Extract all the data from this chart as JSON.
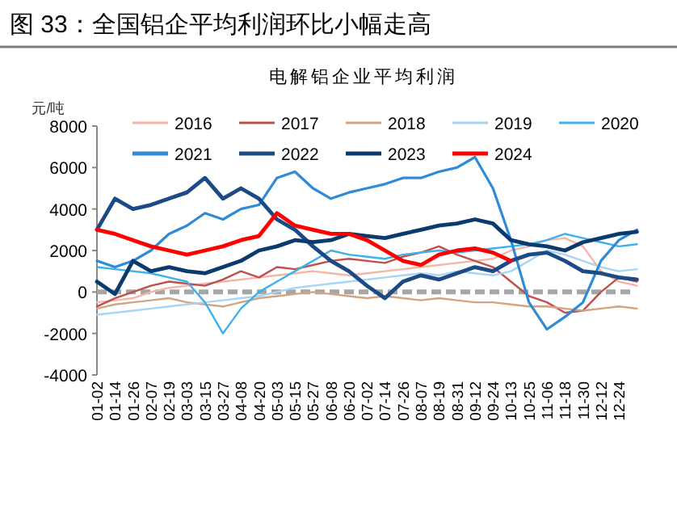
{
  "chart_data": {
    "type": "line",
    "title": "图 33：全国铝企平均利润环比小幅走高",
    "subtitle": "电解铝企业平均利润",
    "ylabel": "元/吨",
    "categories": [
      "01-02",
      "01-14",
      "01-26",
      "02-07",
      "02-19",
      "03-03",
      "03-15",
      "03-27",
      "04-08",
      "04-20",
      "05-03",
      "05-15",
      "05-27",
      "06-08",
      "06-20",
      "07-02",
      "07-14",
      "07-26",
      "08-07",
      "08-19",
      "08-31",
      "09-12",
      "09-24",
      "10-13",
      "10-25",
      "11-06",
      "11-18",
      "11-30",
      "12-12",
      "12-24",
      null
    ],
    "ylim": [
      -4000,
      8000
    ],
    "yticks": [
      -4000,
      -2000,
      0,
      2000,
      4000,
      6000,
      8000
    ],
    "grid": false,
    "legend": "top",
    "line_style": "solid",
    "ref_lines": [
      {
        "axis": "y",
        "value": 0,
        "color": "#a6a6a6",
        "line_style": "dashed"
      }
    ],
    "series": [
      {
        "name": "2016",
        "color": "#f4b6a6",
        "values": [
          -500,
          -400,
          -300,
          0,
          200,
          300,
          400,
          500,
          600,
          700,
          800,
          900,
          1000,
          900,
          800,
          900,
          1000,
          1100,
          1200,
          1300,
          1400,
          1500,
          1600,
          2000,
          2200,
          2500,
          2600,
          2200,
          1000,
          500,
          300
        ]
      },
      {
        "name": "2017",
        "color": "#c0504d",
        "values": [
          -700,
          -300,
          0,
          300,
          500,
          400,
          300,
          600,
          1000,
          700,
          1200,
          1100,
          1300,
          1500,
          1600,
          1500,
          1400,
          1700,
          1900,
          2200,
          1800,
          1500,
          1200,
          500,
          -200,
          -500,
          -1000,
          -900,
          0,
          700,
          500
        ]
      },
      {
        "name": "2018",
        "color": "#d4a37f",
        "values": [
          -800,
          -600,
          -500,
          -400,
          -300,
          -500,
          -600,
          -700,
          -500,
          -300,
          -200,
          -100,
          0,
          -100,
          -200,
          -300,
          -200,
          -300,
          -400,
          -300,
          -400,
          -500,
          -500,
          -600,
          -700,
          -700,
          -800,
          -900,
          -800,
          -700,
          -800
        ]
      },
      {
        "name": "2019",
        "color": "#a9d4f2",
        "values": [
          -1100,
          -1000,
          -900,
          -800,
          -700,
          -600,
          -500,
          -400,
          -300,
          -200,
          0,
          200,
          300,
          400,
          500,
          600,
          700,
          800,
          900,
          800,
          1000,
          900,
          800,
          1000,
          1500,
          2000,
          1800,
          1500,
          1200,
          1000,
          1100
        ]
      },
      {
        "name": "2020",
        "color": "#3cb2ec",
        "values": [
          1200,
          1100,
          1000,
          900,
          700,
          500,
          -500,
          -2000,
          -800,
          0,
          500,
          1000,
          1500,
          2000,
          1800,
          1700,
          1600,
          1800,
          1900,
          2000,
          1900,
          2000,
          2100,
          2200,
          2300,
          2500,
          2800,
          2600,
          2400,
          2200,
          2300
        ]
      },
      {
        "name": "2021",
        "color": "#2f8ad8",
        "values": [
          1500,
          1200,
          1500,
          2000,
          2800,
          3200,
          3800,
          3500,
          4000,
          4200,
          5500,
          5800,
          5000,
          4500,
          4800,
          5000,
          5200,
          5500,
          5500,
          5800,
          6000,
          6500,
          5000,
          2500,
          -500,
          -1800,
          -1200,
          -500,
          1500,
          2500,
          3000
        ]
      },
      {
        "name": "2022",
        "color": "#1c4a86",
        "values": [
          3000,
          4500,
          4000,
          4200,
          4500,
          4800,
          5500,
          4500,
          5000,
          4500,
          3500,
          3000,
          2200,
          1500,
          1000,
          300,
          -300,
          500,
          800,
          600,
          900,
          1200,
          1000,
          1500,
          1800,
          1900,
          1500,
          1000,
          900,
          700,
          600
        ]
      },
      {
        "name": "2023",
        "color": "#0b3a6e",
        "values": [
          500,
          -100,
          1500,
          1000,
          1200,
          1000,
          900,
          1200,
          1500,
          2000,
          2200,
          2500,
          2400,
          2500,
          2800,
          2700,
          2600,
          2800,
          3000,
          3200,
          3300,
          3500,
          3300,
          2500,
          2300,
          2200,
          2000,
          2400,
          2600,
          2800,
          2900
        ]
      },
      {
        "name": "2024",
        "color": "#ff0000",
        "values": [
          3000,
          2800,
          2500,
          2200,
          2000,
          1800,
          2000,
          2200,
          2500,
          2700,
          3800,
          3200,
          3000,
          2800,
          2800,
          2500,
          2000,
          1500,
          1300,
          1800,
          2000,
          2100,
          1900,
          1500,
          null,
          null,
          null,
          null,
          null,
          null,
          null
        ]
      }
    ]
  }
}
